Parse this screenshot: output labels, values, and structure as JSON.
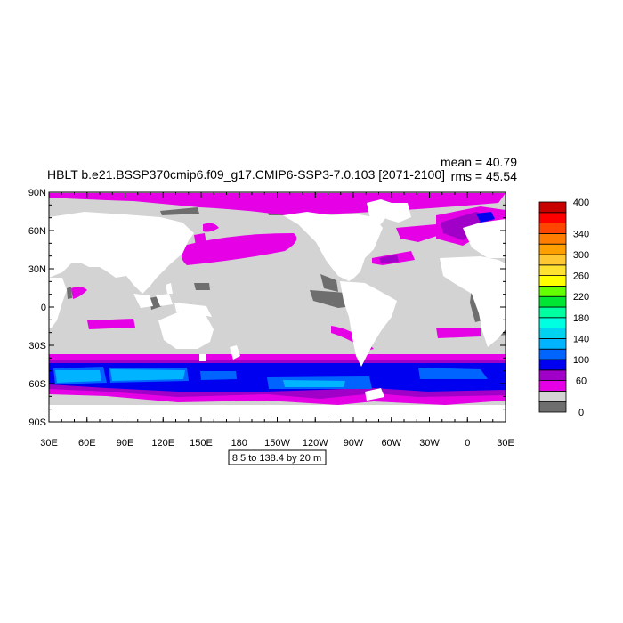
{
  "title": "HBLT b.e21.BSSP370cmip6.f09_g17.CMIP6-SSP3-7.0.103 [2071-2100]",
  "stats": {
    "mean_label": "mean = 40.79",
    "rms_label": "rms = 45.54"
  },
  "info_box": "8.5 to 138.4 by 20 m",
  "axes": {
    "lat_ticks": [
      {
        "label": "90N",
        "lat": 90
      },
      {
        "label": "60N",
        "lat": 60
      },
      {
        "label": "30N",
        "lat": 30
      },
      {
        "label": "0",
        "lat": 0
      },
      {
        "label": "30S",
        "lat": -30
      },
      {
        "label": "60S",
        "lat": -60
      },
      {
        "label": "90S",
        "lat": -90
      }
    ],
    "lon_ticks": [
      {
        "label": "30E",
        "lon": 30
      },
      {
        "label": "60E",
        "lon": 60
      },
      {
        "label": "90E",
        "lon": 90
      },
      {
        "label": "120E",
        "lon": 120
      },
      {
        "label": "150E",
        "lon": 150
      },
      {
        "label": "180",
        "lon": 180
      },
      {
        "label": "150W",
        "lon": 210
      },
      {
        "label": "120W",
        "lon": 240
      },
      {
        "label": "90W",
        "lon": 270
      },
      {
        "label": "60W",
        "lon": 300
      },
      {
        "label": "30W",
        "lon": 330
      },
      {
        "label": "0",
        "lon": 360
      },
      {
        "label": "30E",
        "lon": 390
      }
    ],
    "lon_range": [
      30,
      390
    ],
    "lat_range": [
      -90,
      90
    ]
  },
  "colorbar": {
    "levels": [
      0,
      20,
      40,
      60,
      80,
      100,
      120,
      140,
      160,
      180,
      200,
      220,
      240,
      260,
      280,
      300,
      320,
      340,
      360,
      380,
      400
    ],
    "colors": [
      "#6e6e6e",
      "#d3d3d3",
      "#e600e6",
      "#a000c8",
      "#0000f0",
      "#0064ff",
      "#00b4ff",
      "#00d2f0",
      "#00ffe1",
      "#00ffa0",
      "#00e632",
      "#64ff00",
      "#ffff00",
      "#ffe132",
      "#ffc832",
      "#ffa000",
      "#ff7d00",
      "#ff4600",
      "#ff0000",
      "#c80000"
    ],
    "labels": [
      {
        "text": "0",
        "level": 0
      },
      {
        "text": "60",
        "level": 60
      },
      {
        "text": "100",
        "level": 100
      },
      {
        "text": "140",
        "level": 140
      },
      {
        "text": "180",
        "level": 180
      },
      {
        "text": "220",
        "level": 220
      },
      {
        "text": "260",
        "level": 260
      },
      {
        "text": "300",
        "level": 300
      },
      {
        "text": "340",
        "level": 340
      },
      {
        "text": "400",
        "level": 400
      }
    ]
  }
}
